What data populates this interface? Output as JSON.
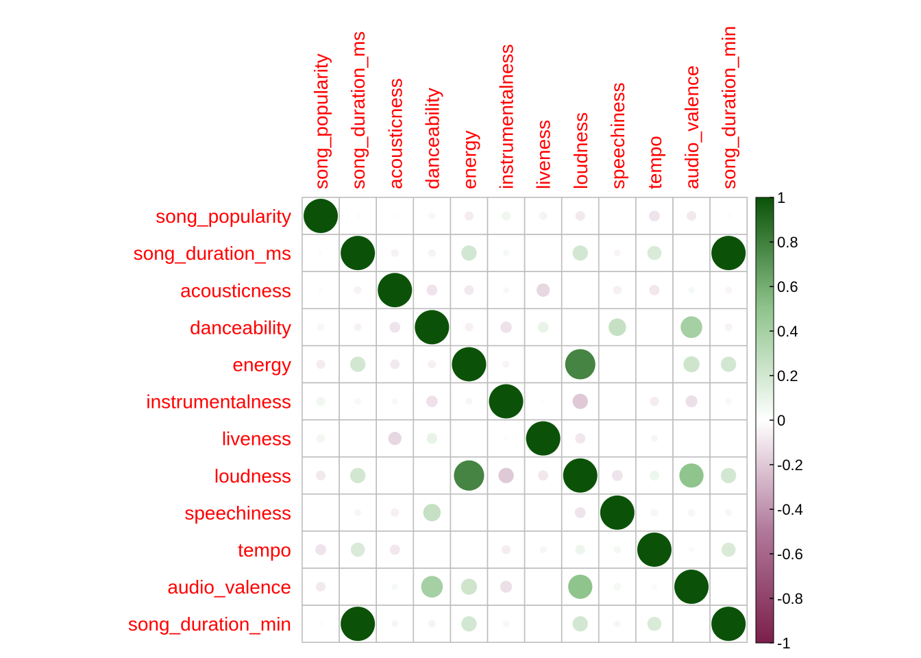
{
  "chart_data": {
    "type": "heatmap",
    "variables": [
      "song_popularity",
      "song_duration_ms",
      "acousticness",
      "danceability",
      "energy",
      "instrumentalness",
      "liveness",
      "loudness",
      "speechiness",
      "tempo",
      "audio_valence",
      "song_duration_min"
    ],
    "matrix": [
      [
        1.0,
        0.02,
        0.02,
        0.05,
        -0.07,
        0.07,
        0.06,
        -0.08,
        0.01,
        -0.1,
        -0.08,
        0.02
      ],
      [
        0.02,
        1.0,
        -0.05,
        -0.05,
        0.2,
        0.04,
        0.0,
        0.2,
        -0.04,
        0.17,
        0.0,
        1.0
      ],
      [
        0.02,
        -0.05,
        1.0,
        -0.1,
        -0.08,
        -0.03,
        -0.15,
        0.01,
        -0.06,
        -0.09,
        0.04,
        -0.04
      ],
      [
        0.05,
        -0.05,
        -0.1,
        1.0,
        -0.06,
        -0.11,
        0.1,
        0.0,
        0.26,
        0.0,
        0.4,
        -0.05
      ],
      [
        -0.07,
        0.2,
        -0.08,
        -0.06,
        1.0,
        -0.04,
        0.0,
        0.78,
        0.01,
        0.01,
        0.22,
        0.2
      ],
      [
        0.07,
        0.04,
        -0.03,
        -0.11,
        -0.04,
        1.0,
        0.02,
        -0.2,
        0.01,
        -0.07,
        -0.12,
        0.04
      ],
      [
        0.06,
        0.0,
        -0.15,
        0.1,
        0.0,
        0.02,
        1.0,
        -0.09,
        0.01,
        -0.04,
        0.0,
        0.0
      ],
      [
        -0.08,
        0.2,
        0.01,
        0.0,
        0.78,
        -0.2,
        -0.09,
        1.0,
        -0.1,
        0.08,
        0.5,
        0.2
      ],
      [
        0.01,
        -0.04,
        -0.06,
        0.26,
        0.01,
        0.01,
        0.01,
        -0.1,
        1.0,
        0.05,
        0.05,
        -0.04
      ],
      [
        -0.1,
        0.17,
        -0.09,
        0.0,
        0.01,
        -0.07,
        -0.04,
        0.08,
        0.05,
        1.0,
        0.03,
        0.17
      ],
      [
        -0.08,
        0.0,
        0.04,
        0.4,
        0.22,
        -0.12,
        0.0,
        0.5,
        0.05,
        0.03,
        1.0,
        0.0
      ],
      [
        0.02,
        1.0,
        -0.04,
        -0.05,
        0.2,
        0.04,
        0.0,
        0.2,
        -0.04,
        0.17,
        0.0,
        1.0
      ]
    ],
    "colorbar": {
      "ticks": [
        "1",
        "0.8",
        "0.6",
        "0.4",
        "0.2",
        "0",
        "-0.2",
        "-0.4",
        "-0.6",
        "-0.8",
        "-1"
      ],
      "range": [
        -1,
        1
      ]
    },
    "colors": {
      "positive": "#0b5208",
      "neutral": "#ffffff",
      "negative": "#7b1f4a",
      "labels": "#ff0000",
      "grid": "#bdbdbd"
    },
    "grid": true,
    "legend_placement": "right"
  }
}
